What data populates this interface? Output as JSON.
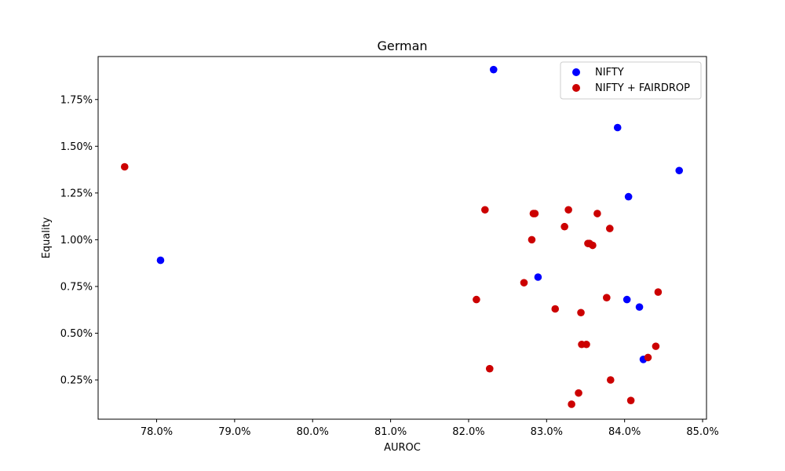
{
  "chart_data": {
    "type": "scatter",
    "title": "German",
    "xlabel": "AUROC",
    "ylabel": "Equality",
    "xlim": [
      77.25,
      85.05
    ],
    "ylim": [
      0.04,
      1.98
    ],
    "grid": false,
    "legend_position": "top-right",
    "x_ticks": [
      78.0,
      79.0,
      80.0,
      81.0,
      82.0,
      83.0,
      84.0,
      85.0
    ],
    "x_tick_labels": [
      "78.0%",
      "79.0%",
      "80.0%",
      "81.0%",
      "82.0%",
      "83.0%",
      "84.0%",
      "85.0%"
    ],
    "y_ticks": [
      0.25,
      0.5,
      0.75,
      1.0,
      1.25,
      1.5,
      1.75
    ],
    "y_tick_labels": [
      "0.25%",
      "0.50%",
      "0.75%",
      "1.00%",
      "1.25%",
      "1.50%",
      "1.75%"
    ],
    "series": [
      {
        "name": "NIFTY",
        "color": "#0000ff",
        "points": [
          [
            82.32,
            1.91
          ],
          [
            83.91,
            1.6
          ],
          [
            84.7,
            1.37
          ],
          [
            84.05,
            1.23
          ],
          [
            78.05,
            0.89
          ],
          [
            82.89,
            0.8
          ],
          [
            84.03,
            0.68
          ],
          [
            84.19,
            0.64
          ],
          [
            84.24,
            0.36
          ]
        ]
      },
      {
        "name": "NIFTY + FAIRDROP",
        "color": "#cc0000",
        "points": [
          [
            77.59,
            1.39
          ],
          [
            82.21,
            1.16
          ],
          [
            82.83,
            1.14
          ],
          [
            82.85,
            1.14
          ],
          [
            83.28,
            1.16
          ],
          [
            83.65,
            1.14
          ],
          [
            83.23,
            1.07
          ],
          [
            83.81,
            1.06
          ],
          [
            82.81,
            1.0
          ],
          [
            83.53,
            0.98
          ],
          [
            83.55,
            0.98
          ],
          [
            83.59,
            0.97
          ],
          [
            82.71,
            0.77
          ],
          [
            82.1,
            0.68
          ],
          [
            83.77,
            0.69
          ],
          [
            84.43,
            0.72
          ],
          [
            83.11,
            0.63
          ],
          [
            83.44,
            0.61
          ],
          [
            83.45,
            0.44
          ],
          [
            83.51,
            0.44
          ],
          [
            84.4,
            0.43
          ],
          [
            84.3,
            0.37
          ],
          [
            82.27,
            0.31
          ],
          [
            83.82,
            0.25
          ],
          [
            83.41,
            0.18
          ],
          [
            83.32,
            0.12
          ],
          [
            84.08,
            0.14
          ]
        ]
      }
    ]
  }
}
